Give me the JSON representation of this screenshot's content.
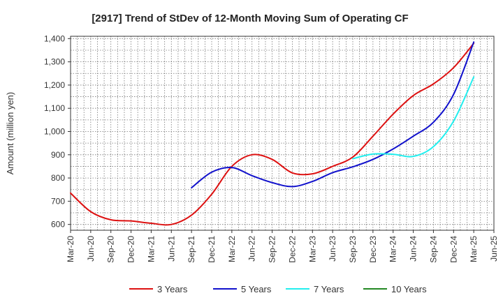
{
  "chart_data": {
    "type": "line",
    "title": "[2917]  Trend of StDev of 12-Month Moving Sum of Operating CF",
    "xlabel": "",
    "ylabel": "Amount (million yen)",
    "ylim": [
      575,
      1410
    ],
    "yticks": [
      600,
      700,
      800,
      900,
      1000,
      1100,
      1200,
      1300,
      1400
    ],
    "ytick_labels": [
      "600",
      "700",
      "800",
      "900",
      "1,000",
      "1,100",
      "1,200",
      "1,300",
      "1,400"
    ],
    "x_categories": [
      "Mar-20",
      "Jun-20",
      "Sep-20",
      "Dec-20",
      "Mar-21",
      "Jun-21",
      "Sep-21",
      "Dec-21",
      "Mar-22",
      "Jun-22",
      "Sep-22",
      "Dec-22",
      "Mar-23",
      "Jun-23",
      "Sep-23",
      "Dec-23",
      "Mar-24",
      "Jun-24",
      "Sep-24",
      "Dec-24",
      "Mar-25",
      "Jun-25"
    ],
    "grid": true,
    "legend_position": "bottom",
    "series": [
      {
        "name": "3 Years",
        "color": "#dd1111",
        "x": [
          "Mar-20",
          "Jun-20",
          "Sep-20",
          "Dec-20",
          "Mar-21",
          "Jun-21",
          "Sep-21",
          "Dec-21",
          "Mar-22",
          "Jun-22",
          "Sep-22",
          "Dec-22",
          "Mar-23",
          "Jun-23",
          "Sep-23",
          "Dec-23",
          "Mar-24",
          "Jun-24",
          "Sep-24",
          "Dec-24",
          "Mar-25"
        ],
        "values": [
          735,
          655,
          620,
          615,
          605,
          600,
          640,
          730,
          850,
          900,
          880,
          822,
          818,
          850,
          890,
          980,
          1075,
          1155,
          1205,
          1275,
          1380
        ]
      },
      {
        "name": "5 Years",
        "color": "#1111cc",
        "x": [
          "Sep-21",
          "Dec-21",
          "Mar-22",
          "Jun-22",
          "Sep-22",
          "Dec-22",
          "Mar-23",
          "Jun-23",
          "Sep-23",
          "Dec-23",
          "Mar-24",
          "Jun-24",
          "Sep-24",
          "Dec-24",
          "Mar-25"
        ],
        "values": [
          758,
          825,
          845,
          810,
          780,
          763,
          785,
          823,
          848,
          880,
          925,
          980,
          1040,
          1160,
          1385
        ]
      },
      {
        "name": "7 Years",
        "color": "#22eeee",
        "x": [
          "Sep-23",
          "Dec-23",
          "Mar-24",
          "Jun-24",
          "Sep-24",
          "Dec-24",
          "Mar-25"
        ],
        "values": [
          883,
          903,
          902,
          893,
          935,
          1045,
          1235
        ]
      },
      {
        "name": "10 Years",
        "color": "#228822",
        "x": [],
        "values": []
      }
    ]
  }
}
